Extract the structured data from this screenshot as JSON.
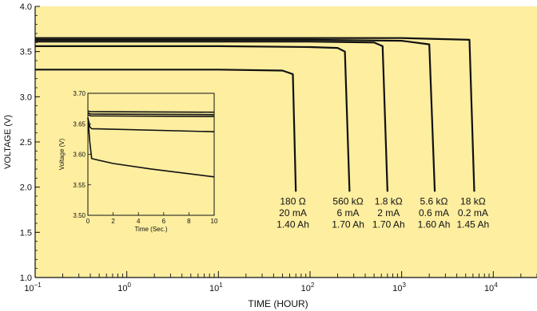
{
  "colors": {
    "plot_background": "#fdeea0",
    "line": "#111111",
    "axis": "#111111"
  },
  "chart_data": [
    {
      "type": "line",
      "xlabel": "TIME (HOUR)",
      "ylabel": "VOLTAGE (V)",
      "xscale": "log",
      "xlim": [
        0.1,
        30000
      ],
      "ylim": [
        1.0,
        4.0
      ],
      "x_ticks": [
        {
          "value": 0.1,
          "base": "10",
          "exp": "−1"
        },
        {
          "value": 1,
          "base": "10",
          "exp": "0"
        },
        {
          "value": 10,
          "base": "10",
          "exp": "1"
        },
        {
          "value": 100,
          "base": "10",
          "exp": "2"
        },
        {
          "value": 1000,
          "base": "10",
          "exp": "3"
        },
        {
          "value": 10000,
          "base": "10",
          "exp": "4"
        }
      ],
      "y_ticks": [
        "1.0",
        "1.5",
        "2.0",
        "2.5",
        "3.0",
        "3.5",
        "4.0"
      ],
      "series": [
        {
          "x": [
            0.1,
            1,
            10,
            50,
            65,
            70
          ],
          "y": [
            3.3,
            3.3,
            3.3,
            3.29,
            3.25,
            1.95
          ]
        },
        {
          "x": [
            0.1,
            10,
            100,
            200,
            240,
            270
          ],
          "y": [
            3.56,
            3.56,
            3.55,
            3.54,
            3.5,
            1.95
          ]
        },
        {
          "x": [
            0.1,
            10,
            100,
            500,
            620,
            700
          ],
          "y": [
            3.61,
            3.61,
            3.61,
            3.6,
            3.56,
            1.95
          ]
        },
        {
          "x": [
            0.1,
            10,
            100,
            1000,
            2000,
            2300
          ],
          "y": [
            3.63,
            3.63,
            3.63,
            3.62,
            3.58,
            1.95
          ]
        },
        {
          "x": [
            0.1,
            10,
            100,
            1000,
            5500,
            6200
          ],
          "y": [
            3.65,
            3.65,
            3.65,
            3.65,
            3.63,
            1.95
          ]
        }
      ],
      "annotations": [
        {
          "x": 65,
          "lines": [
            "180 Ω",
            "20 mA",
            "1.40 Ah"
          ]
        },
        {
          "x": 260,
          "lines": [
            "560 kΩ",
            "6 mA",
            "1.70 Ah"
          ]
        },
        {
          "x": 720,
          "lines": [
            "1.8 kΩ",
            "2 mA",
            "1.70 Ah"
          ]
        },
        {
          "x": 2250,
          "lines": [
            "5.6 kΩ",
            "0.6 mA",
            "1.60 Ah"
          ]
        },
        {
          "x": 6000,
          "lines": [
            "18 kΩ",
            "0.2 mA",
            "1.45 Ah"
          ]
        }
      ],
      "grid": false,
      "legend": "none"
    },
    {
      "type": "line",
      "xlabel": "Time (Sec.)",
      "ylabel": "Voltage (V)",
      "xlim": [
        0,
        10
      ],
      "ylim": [
        3.5,
        3.7
      ],
      "x_ticks": [
        "0",
        "2",
        "4",
        "6",
        "8",
        "10"
      ],
      "y_ticks": [
        "3.50",
        "3.55",
        "3.60",
        "3.65",
        "3.70"
      ],
      "series": [
        {
          "x": [
            0,
            0.15,
            0.3,
            2,
            5,
            10
          ],
          "y": [
            3.66,
            3.62,
            3.593,
            3.585,
            3.576,
            3.563
          ]
        },
        {
          "x": [
            0,
            0.15,
            0.3,
            10
          ],
          "y": [
            3.66,
            3.645,
            3.642,
            3.637
          ]
        },
        {
          "x": [
            0,
            0.2,
            10
          ],
          "y": [
            3.665,
            3.663,
            3.662
          ]
        },
        {
          "x": [
            0,
            0.2,
            10
          ],
          "y": [
            3.668,
            3.666,
            3.665
          ]
        },
        {
          "x": [
            0,
            0.2,
            10
          ],
          "y": [
            3.671,
            3.67,
            3.669
          ]
        }
      ],
      "grid": false,
      "legend": "none"
    }
  ]
}
